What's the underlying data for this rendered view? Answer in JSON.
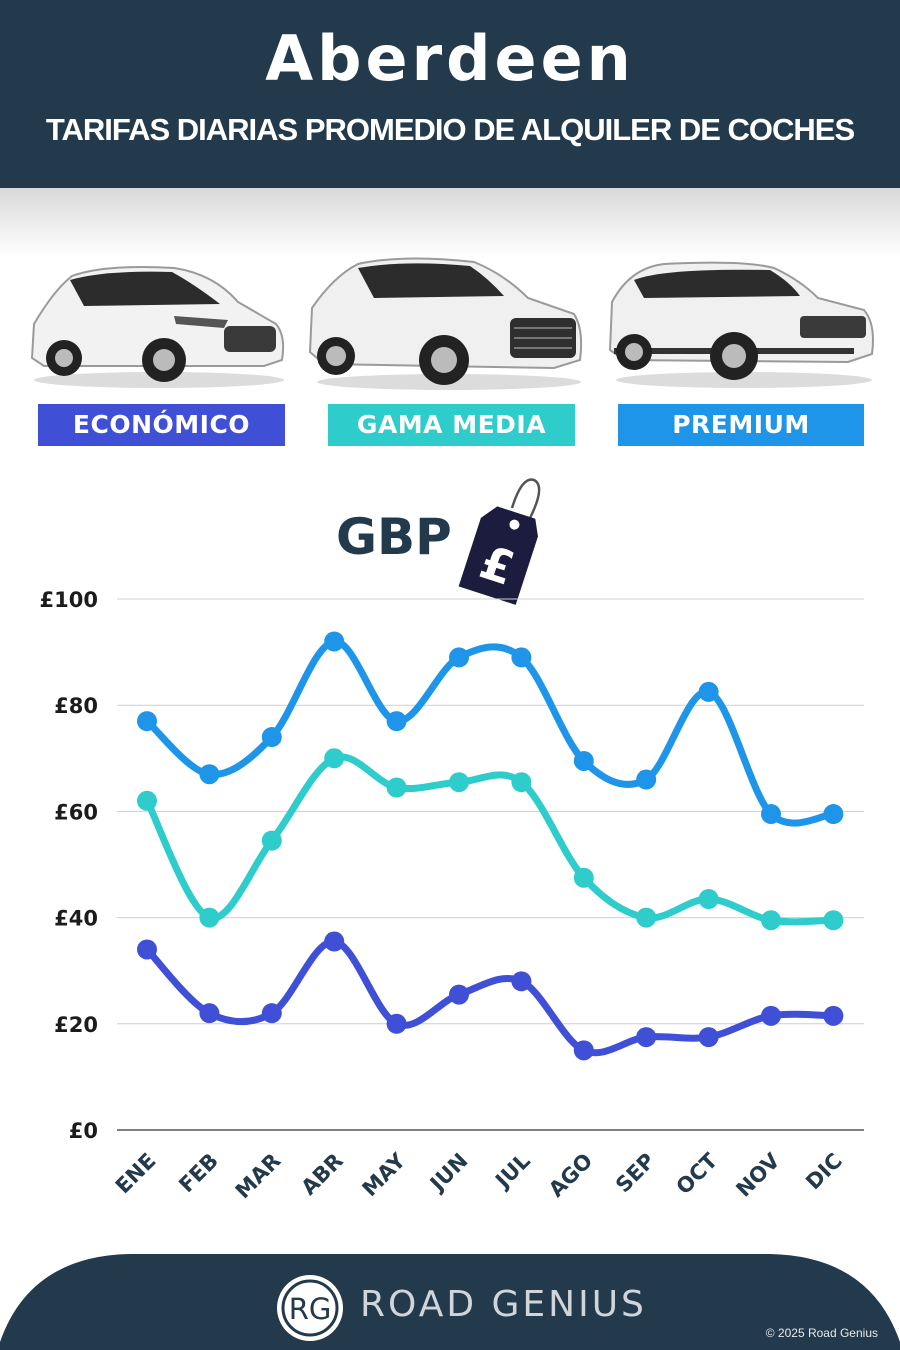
{
  "header": {
    "city": "Aberdeen",
    "subtitle": "TARIFAS DIARIAS PROMEDIO DE ALQUILER DE COCHES"
  },
  "categories": [
    {
      "label": "ECONÓMICO",
      "color": "#3f4fd6"
    },
    {
      "label": "GAMA MEDIA",
      "color": "#2fcccc"
    },
    {
      "label": "PREMIUM",
      "color": "#1e95e8"
    }
  ],
  "currency": {
    "label": "GBP",
    "symbol": "£"
  },
  "chart_data": {
    "type": "line",
    "categories": [
      "ENE",
      "FEB",
      "MAR",
      "ABR",
      "MAY",
      "JUN",
      "JUL",
      "AGO",
      "SEP",
      "OCT",
      "NOV",
      "DIC"
    ],
    "series": [
      {
        "name": "PREMIUM",
        "color": "#1e95e8",
        "values": [
          77,
          67,
          74,
          92,
          77,
          89,
          89,
          69.5,
          66,
          82.5,
          59.5,
          59.5
        ]
      },
      {
        "name": "GAMA MEDIA",
        "color": "#2fcccc",
        "values": [
          62,
          40,
          54.5,
          70,
          64.5,
          65.5,
          65.5,
          47.5,
          40,
          43.5,
          39.5,
          39.5
        ]
      },
      {
        "name": "ECONÓMICO",
        "color": "#3f4fd6",
        "values": [
          34,
          22,
          22,
          35.5,
          20,
          25.5,
          28,
          15,
          17.5,
          17.5,
          21.5,
          21.5
        ]
      }
    ],
    "y_ticks": [
      "£0",
      "£20",
      "£40",
      "£60",
      "£80",
      "£100"
    ],
    "ylim": [
      0,
      100
    ],
    "grid": true
  },
  "footer": {
    "logo_text": "RG",
    "brand": "ROAD GENIUS",
    "copyright": "© 2025 Road Genius"
  }
}
